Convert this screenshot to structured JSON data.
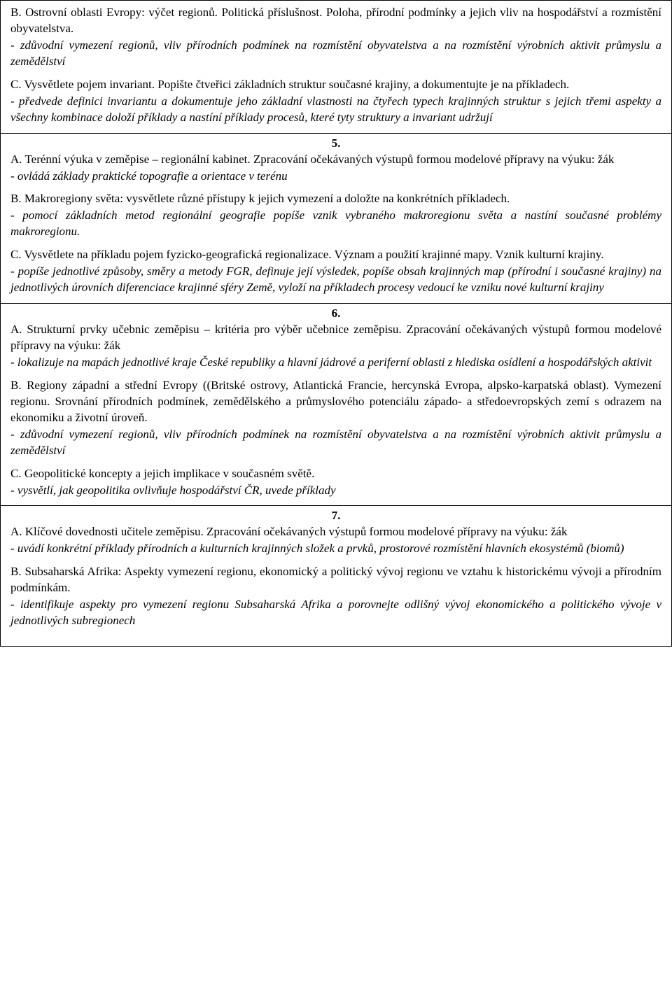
{
  "blocks": [
    {
      "type": "heading",
      "text": "B. Ostrovní oblasti Evropy: výčet regionů. Politická příslušnost. Poloha, přírodní podmínky a jejich vliv na hospodářství a rozmístění obyvatelstva."
    },
    {
      "type": "italic",
      "text": "- zdůvodní vymezení regionů, vliv přírodních podmínek na rozmístění obyvatelstva a na rozmístění výrobních aktivit průmyslu a zemědělství"
    },
    {
      "type": "heading",
      "text": "C. Vysvětlete pojem invariant. Popište čtveřici základních struktur současné krajiny, a dokumentujte je na příkladech."
    },
    {
      "type": "italic",
      "text": "- předvede definici invariantu a dokumentuje jeho základní vlastnosti na čtyřech typech krajinných struktur s jejich třemi aspekty a všechny kombinace doloží příklady a nastíní příklady procesů, které tyty struktury a invariant udržují"
    },
    {
      "type": "divider"
    },
    {
      "type": "number",
      "text": "5."
    },
    {
      "type": "heading",
      "text": "A. Terénní výuka v zeměpise – regionální kabinet. Zpracování očekávaných výstupů formou modelové přípravy na výuku: žák"
    },
    {
      "type": "italic",
      "text": " - ovládá základy praktické topografie a orientace v terénu"
    },
    {
      "type": "heading",
      "text": "B. Makroregiony světa: vysvětlete různé přístupy k jejich vymezení a doložte na konkrétních příkladech."
    },
    {
      "type": "italic",
      "text": "- pomocí základních metod regionální geografie popíše vznik vybraného makroregionu světa a nastíní současné problémy makroregionu."
    },
    {
      "type": "heading",
      "text": "C. Vysvětlete na příkladu pojem fyzicko-geografická regionalizace. Význam a použití krajinné mapy. Vznik kulturní krajiny."
    },
    {
      "type": "italic",
      "text": "- popíše jednotlivé způsoby, směry a metody FGR, definuje její výsledek, popíše obsah krajinných map (přírodní i současné krajiny) na jednotlivých úrovních diferenciace krajinné sféry Země, vyloží na příkladech procesy vedoucí ke vzniku nové kulturní krajiny"
    },
    {
      "type": "divider"
    },
    {
      "type": "number",
      "text": "6."
    },
    {
      "type": "heading",
      "text": "A. Strukturní prvky učebnic zeměpisu – kritéria pro výběr učebnice zeměpisu. Zpracování očekávaných výstupů formou modelové přípravy na výuku: žák"
    },
    {
      "type": "italic-indent",
      "text": "  - lokalizuje na mapách jednotlivé kraje České republiky a hlavní jádrové a periferní oblasti z hlediska osídlení a hospodářských aktivit"
    },
    {
      "type": "heading",
      "text": "B. Regiony západní a střední Evropy ((Britské ostrovy, Atlantická Francie, hercynská Evropa, alpsko-karpatská oblast). Vymezení regionu. Srovnání přírodních podmínek, zemědělského a průmyslového potenciálu západo- a středoevropských zemí s odrazem na ekonomiku a životní úroveň."
    },
    {
      "type": "italic",
      "text": "- zdůvodní vymezení regionů, vliv přírodních podmínek na rozmístění obyvatelstva a na rozmístění výrobních aktivit průmyslu a zemědělství"
    },
    {
      "type": "heading",
      "text": "C. Geopolitické koncepty a jejich implikace v současném světě."
    },
    {
      "type": "italic",
      "text": "- vysvětlí, jak geopolitika ovlivňuje hospodářství ČR, uvede příklady"
    },
    {
      "type": "divider"
    },
    {
      "type": "number",
      "text": "7."
    },
    {
      "type": "heading",
      "text": "A. Klíčové dovednosti učitele zeměpisu. Zpracování očekávaných výstupů formou modelové přípravy na výuku: žák"
    },
    {
      "type": "italic",
      "text": "- uvádí konkrétní příklady přírodních a kulturních krajinných složek a prvků, prostorové rozmístění hlavních ekosystémů (biomů)"
    },
    {
      "type": "heading",
      "text": "B. Subsaharská Afrika: Aspekty vymezení regionu, ekonomický a politický vývoj regionu ve vztahu k historickému vývoji a přírodním podmínkám."
    },
    {
      "type": "italic",
      "text": "- identifikuje aspekty pro vymezení regionu Subsaharská Afrika a porovnejte odlišný vývoj ekonomického a politického vývoje v jednotlivých subregionech"
    }
  ]
}
